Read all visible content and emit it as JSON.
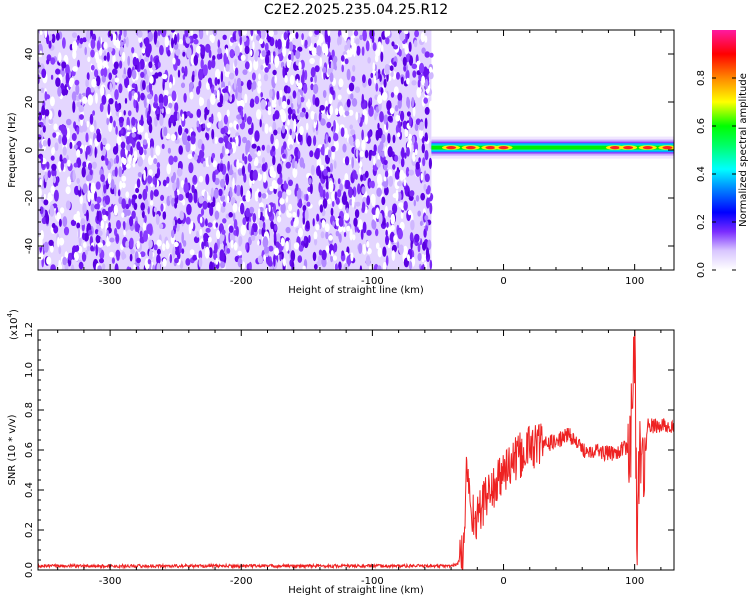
{
  "title": "C2E2.2025.235.04.25.R12",
  "chart_data": [
    {
      "type": "heatmap",
      "xlabel": "Height of straight line (km)",
      "ylabel": "Frequency (Hz)",
      "xlim": [
        -355,
        130
      ],
      "ylim": [
        -50,
        50
      ],
      "xticks": [
        -300,
        -200,
        -100,
        0,
        100
      ],
      "xtick_labels": [
        "-300",
        "-200",
        "-100",
        "0",
        "100"
      ],
      "yticks": [
        -40,
        -20,
        0,
        20,
        40
      ],
      "ytick_labels": [
        "-40",
        "-20",
        "0",
        "20",
        "40"
      ],
      "noise_region_x": [
        -355,
        -55
      ],
      "signal_line": {
        "x_range": [
          -55,
          130
        ],
        "frequency": 1,
        "peak_x": [
          -40,
          -25,
          -10,
          0,
          85,
          95,
          110,
          125
        ]
      },
      "colorbar": {
        "label": "Normalized spectral amplitude",
        "range": [
          0,
          1
        ],
        "ticks": [
          0.0,
          0.2,
          0.4,
          0.6,
          0.8
        ],
        "tick_labels": [
          "0.0",
          "0.2",
          "0.4",
          "0.6",
          "0.8"
        ],
        "colors": [
          "#ffffff",
          "#b58cff",
          "#5500dd",
          "#0000ff",
          "#00ffff",
          "#00ff00",
          "#ffff00",
          "#ff8800",
          "#ff0000",
          "#ff00aa"
        ]
      }
    },
    {
      "type": "line",
      "xlabel": "Height of straight line (km)",
      "ylabel": "SNR (10 * v/v)",
      "multiplier": "(x10",
      "multiplier_exp": "4",
      "multiplier_close": ")",
      "xlim": [
        -355,
        130
      ],
      "ylim": [
        0,
        1.2
      ],
      "xticks": [
        -300,
        -200,
        -100,
        0,
        100
      ],
      "xtick_labels": [
        "-300",
        "-200",
        "-100",
        "0",
        "100"
      ],
      "yticks": [
        0.0,
        0.2,
        0.4,
        0.6,
        0.8,
        1.0,
        1.2
      ],
      "ytick_labels": [
        "0.0",
        "0.2",
        "0.4",
        "0.6",
        "0.8",
        "1.0",
        "1.2"
      ],
      "series": [
        {
          "color": "#ee2222",
          "x": [
            -355,
            -300,
            -200,
            -100,
            -40,
            -35,
            -30,
            -28,
            -25,
            -20,
            -15,
            -10,
            -5,
            0,
            10,
            20,
            30,
            40,
            50,
            60,
            70,
            80,
            90,
            95,
            98,
            100,
            102,
            104,
            106,
            110,
            120,
            130
          ],
          "y": [
            0.02,
            0.02,
            0.02,
            0.02,
            0.02,
            0.03,
            0.1,
            0.55,
            0.3,
            0.25,
            0.35,
            0.4,
            0.42,
            0.5,
            0.55,
            0.62,
            0.63,
            0.64,
            0.68,
            0.6,
            0.6,
            0.58,
            0.6,
            0.62,
            0.7,
            1.2,
            0.05,
            0.7,
            0.45,
            0.72,
            0.72,
            0.72
          ]
        }
      ]
    }
  ]
}
